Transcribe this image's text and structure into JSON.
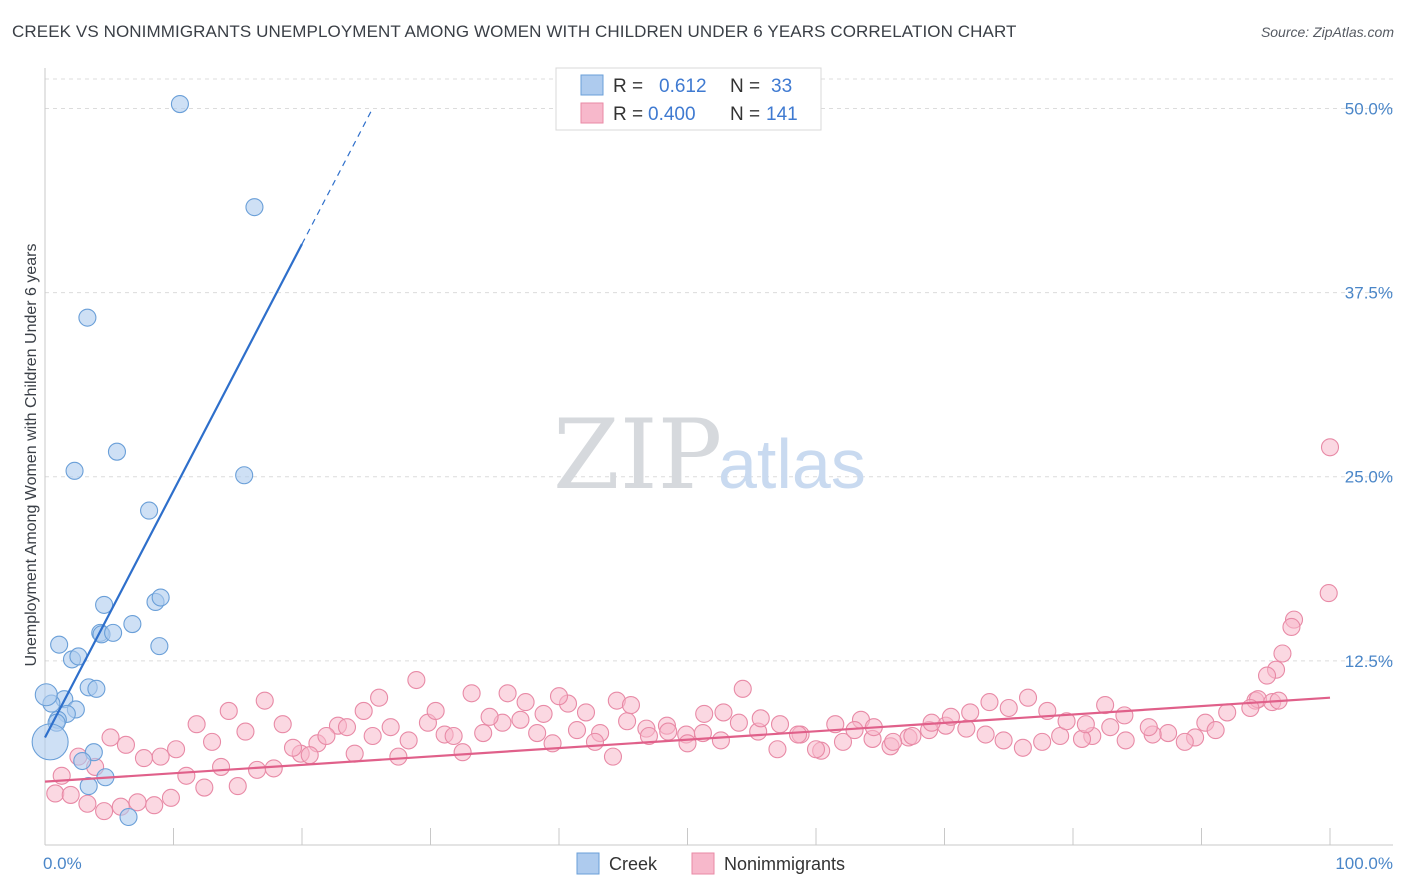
{
  "title": "CREEK VS NONIMMIGRANTS UNEMPLOYMENT AMONG WOMEN WITH CHILDREN UNDER 6 YEARS CORRELATION CHART",
  "source": "Source: ZipAtlas.com",
  "watermark": {
    "zip": "ZIP",
    "atlas": "atlas"
  },
  "legend": {
    "r_label": "R =",
    "n_label": "N =",
    "creek": {
      "r": "0.612",
      "n": "33"
    },
    "nonimmigrants": {
      "r": "0.400",
      "n": "141"
    }
  },
  "bottom_legend": {
    "creek": "Creek",
    "nonimmigrants": "Nonimmigrants"
  },
  "colors": {
    "creek_fill": "#aecbee",
    "creek_stroke": "#6a9fd8",
    "creek_line": "#2e6fcb",
    "non_fill": "#f7b8cb",
    "non_stroke": "#e88aa6",
    "non_line": "#e0608a",
    "tick_label": "#4a86c8",
    "grid": "#dcdcdc"
  },
  "chart_data": {
    "type": "scatter",
    "title": "CREEK VS NONIMMIGRANTS UNEMPLOYMENT AMONG WOMEN WITH CHILDREN UNDER 6 YEARS CORRELATION CHART",
    "xlabel": "",
    "ylabel": "Unemployment Among Women with Children Under 6 years",
    "x_tick_labels": [
      "0.0%",
      "100.0%"
    ],
    "y_tick_labels": [
      "12.5%",
      "25.0%",
      "37.5%",
      "50.0%"
    ],
    "y_ticks": [
      12.5,
      25.0,
      37.5,
      50.0
    ],
    "xlim": [
      0,
      100
    ],
    "ylim": [
      0,
      52
    ],
    "grid": true,
    "legend_position": "top-center",
    "series": [
      {
        "name": "Creek",
        "r": 0.612,
        "n": 33,
        "trend": {
          "x0": 0,
          "y0": 7.3,
          "x1": 20,
          "y1": 40.8,
          "dashed_to_x": 25.5
        },
        "points": [
          [
            10.5,
            50.3
          ],
          [
            16.3,
            43.3
          ],
          [
            3.3,
            35.8
          ],
          [
            5.6,
            26.7
          ],
          [
            2.3,
            25.4
          ],
          [
            15.5,
            25.1
          ],
          [
            8.1,
            22.7
          ],
          [
            4.6,
            16.3
          ],
          [
            8.6,
            16.5
          ],
          [
            9.0,
            16.8
          ],
          [
            6.8,
            15.0
          ],
          [
            4.3,
            14.4
          ],
          [
            4.4,
            14.3
          ],
          [
            5.3,
            14.4
          ],
          [
            1.1,
            13.6
          ],
          [
            8.9,
            13.5
          ],
          [
            2.1,
            12.6
          ],
          [
            2.6,
            12.8
          ],
          [
            3.4,
            10.7
          ],
          [
            4.0,
            10.6
          ],
          [
            1.5,
            9.9
          ],
          [
            0.5,
            9.6
          ],
          [
            2.4,
            9.2
          ],
          [
            1.7,
            8.9
          ],
          [
            1.0,
            8.5
          ],
          [
            0.9,
            8.3
          ],
          [
            0.4,
            7.0
          ],
          [
            3.8,
            6.3
          ],
          [
            2.9,
            5.7
          ],
          [
            4.7,
            4.6
          ],
          [
            3.4,
            4.0
          ],
          [
            6.5,
            1.9
          ],
          [
            0.1,
            10.2
          ]
        ]
      },
      {
        "name": "Nonimmigrants",
        "r": 0.4,
        "n": 141,
        "trend": {
          "x0": 0,
          "y0": 4.3,
          "x1": 100,
          "y1": 10.0
        },
        "points": [
          [
            100.0,
            27.0
          ],
          [
            99.9,
            17.1
          ],
          [
            97.2,
            15.3
          ],
          [
            97.0,
            14.8
          ],
          [
            96.3,
            13.0
          ],
          [
            95.8,
            11.9
          ],
          [
            95.1,
            11.5
          ],
          [
            94.2,
            9.8
          ],
          [
            94.4,
            9.9
          ],
          [
            93.8,
            9.3
          ],
          [
            95.5,
            9.7
          ],
          [
            96.0,
            9.8
          ],
          [
            92.0,
            9.0
          ],
          [
            90.3,
            8.3
          ],
          [
            91.1,
            7.8
          ],
          [
            89.5,
            7.3
          ],
          [
            88.7,
            7.0
          ],
          [
            87.4,
            7.6
          ],
          [
            86.2,
            7.5
          ],
          [
            85.9,
            8.0
          ],
          [
            84.1,
            7.1
          ],
          [
            82.9,
            8.0
          ],
          [
            81.5,
            7.4
          ],
          [
            80.7,
            7.2
          ],
          [
            79.0,
            7.4
          ],
          [
            77.6,
            7.0
          ],
          [
            76.1,
            6.6
          ],
          [
            74.6,
            7.1
          ],
          [
            73.2,
            7.5
          ],
          [
            71.7,
            7.9
          ],
          [
            70.1,
            8.1
          ],
          [
            68.8,
            7.8
          ],
          [
            67.2,
            7.3
          ],
          [
            65.8,
            6.7
          ],
          [
            64.4,
            7.2
          ],
          [
            63.5,
            8.5
          ],
          [
            62.1,
            7.0
          ],
          [
            60.4,
            6.4
          ],
          [
            58.8,
            7.5
          ],
          [
            57.2,
            8.2
          ],
          [
            55.5,
            7.7
          ],
          [
            54.0,
            8.3
          ],
          [
            52.6,
            7.1
          ],
          [
            51.3,
            8.9
          ],
          [
            49.9,
            7.5
          ],
          [
            48.4,
            8.1
          ],
          [
            46.8,
            7.9
          ],
          [
            45.3,
            8.4
          ],
          [
            44.5,
            9.8
          ],
          [
            43.2,
            7.6
          ],
          [
            42.1,
            9.0
          ],
          [
            40.7,
            9.6
          ],
          [
            39.5,
            6.9
          ],
          [
            38.3,
            7.6
          ],
          [
            37.0,
            8.5
          ],
          [
            35.6,
            8.3
          ],
          [
            34.1,
            7.6
          ],
          [
            32.5,
            6.3
          ],
          [
            31.1,
            7.5
          ],
          [
            29.8,
            8.3
          ],
          [
            28.3,
            7.1
          ],
          [
            26.9,
            8.0
          ],
          [
            25.5,
            7.4
          ],
          [
            24.1,
            6.2
          ],
          [
            22.8,
            8.1
          ],
          [
            21.2,
            6.9
          ],
          [
            19.9,
            6.2
          ],
          [
            18.5,
            8.2
          ],
          [
            17.1,
            9.8
          ],
          [
            15.6,
            7.7
          ],
          [
            14.3,
            9.1
          ],
          [
            13.0,
            7.0
          ],
          [
            11.8,
            8.2
          ],
          [
            10.2,
            6.5
          ],
          [
            9.0,
            6.0
          ],
          [
            7.7,
            5.9
          ],
          [
            6.3,
            6.8
          ],
          [
            5.1,
            7.3
          ],
          [
            3.9,
            5.3
          ],
          [
            2.6,
            6.0
          ],
          [
            1.3,
            4.7
          ],
          [
            0.8,
            3.5
          ],
          [
            2.0,
            3.4
          ],
          [
            3.3,
            2.8
          ],
          [
            4.6,
            2.3
          ],
          [
            5.9,
            2.6
          ],
          [
            7.2,
            2.9
          ],
          [
            8.5,
            2.7
          ],
          [
            9.8,
            3.2
          ],
          [
            11.0,
            4.7
          ],
          [
            12.4,
            3.9
          ],
          [
            13.7,
            5.3
          ],
          [
            15.0,
            4.0
          ],
          [
            16.5,
            5.1
          ],
          [
            17.8,
            5.2
          ],
          [
            19.3,
            6.6
          ],
          [
            20.6,
            6.1
          ],
          [
            21.9,
            7.4
          ],
          [
            23.5,
            8.0
          ],
          [
            24.8,
            9.1
          ],
          [
            26.0,
            10.0
          ],
          [
            27.5,
            6.0
          ],
          [
            28.9,
            11.2
          ],
          [
            30.4,
            9.1
          ],
          [
            31.8,
            7.4
          ],
          [
            33.2,
            10.3
          ],
          [
            34.6,
            8.7
          ],
          [
            36.0,
            10.3
          ],
          [
            37.4,
            9.7
          ],
          [
            38.8,
            8.9
          ],
          [
            40.0,
            10.1
          ],
          [
            41.4,
            7.8
          ],
          [
            42.8,
            7.0
          ],
          [
            44.2,
            6.0
          ],
          [
            45.6,
            9.5
          ],
          [
            47.0,
            7.4
          ],
          [
            48.5,
            7.7
          ],
          [
            50.0,
            6.9
          ],
          [
            51.2,
            7.6
          ],
          [
            52.8,
            9.0
          ],
          [
            54.3,
            10.6
          ],
          [
            55.7,
            8.6
          ],
          [
            57.0,
            6.5
          ],
          [
            58.6,
            7.5
          ],
          [
            60.0,
            6.5
          ],
          [
            61.5,
            8.2
          ],
          [
            63.0,
            7.8
          ],
          [
            64.5,
            8.0
          ],
          [
            66.0,
            7.0
          ],
          [
            67.5,
            7.4
          ],
          [
            69.0,
            8.3
          ],
          [
            70.5,
            8.7
          ],
          [
            72.0,
            9.0
          ],
          [
            73.5,
            9.7
          ],
          [
            75.0,
            9.3
          ],
          [
            76.5,
            10.0
          ],
          [
            78.0,
            9.1
          ],
          [
            79.5,
            8.4
          ],
          [
            81.0,
            8.2
          ],
          [
            82.5,
            9.5
          ],
          [
            84.0,
            8.8
          ]
        ]
      }
    ]
  }
}
